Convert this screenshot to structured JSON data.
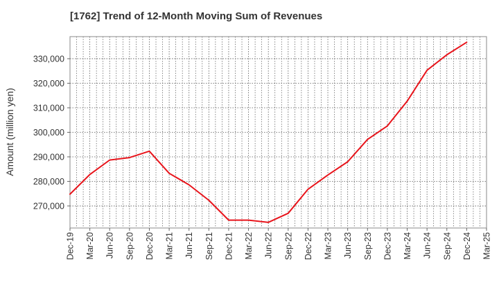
{
  "chart_data": {
    "type": "line",
    "title": "[1762]  Trend of 12-Month Moving Sum of Revenues",
    "xlabel": "",
    "ylabel": "Amount (million yen)",
    "categories": [
      "Dec-19",
      "Mar-20",
      "Jun-20",
      "Sep-20",
      "Dec-20",
      "Mar-21",
      "Jun-21",
      "Sep-21",
      "Dec-21",
      "Mar-22",
      "Jun-22",
      "Sep-22",
      "Dec-22",
      "Mar-23",
      "Jun-23",
      "Sep-23",
      "Dec-23",
      "Mar-24",
      "Jun-24",
      "Sep-24",
      "Dec-24",
      "Mar-25"
    ],
    "series": [
      {
        "name": "",
        "color": "#e8141b",
        "values": [
          274800,
          282800,
          288700,
          289700,
          292300,
          283300,
          278600,
          272300,
          264200,
          264200,
          263300,
          267000,
          276800,
          282600,
          288000,
          297100,
          302600,
          312700,
          325300,
          331600,
          336700,
          null
        ]
      }
    ],
    "ylim": [
      261000,
      339000
    ],
    "yticks": [
      270000,
      280000,
      290000,
      300000,
      310000,
      320000,
      330000
    ],
    "ytick_labels": [
      "270,000",
      "280,000",
      "290,000",
      "300,000",
      "310,000",
      "320,000",
      "330,000"
    ],
    "grid": true
  }
}
